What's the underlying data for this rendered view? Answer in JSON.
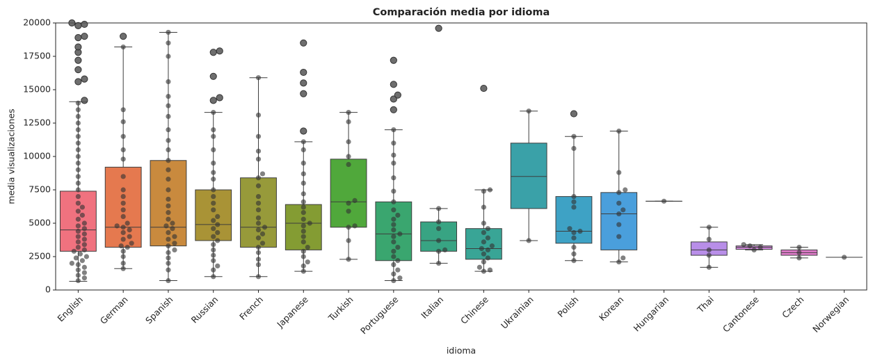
{
  "chart_data": {
    "type": "box",
    "title": "Comparación media por idioma",
    "x_label": "idioma",
    "y_label": "media visualizaciones",
    "ylim": [
      0,
      20000
    ],
    "yticks": [
      0,
      2500,
      5000,
      7500,
      10000,
      12500,
      15000,
      17500,
      20000
    ],
    "categories": [
      "English",
      "German",
      "Spanish",
      "Russian",
      "French",
      "Japanese",
      "Turkish",
      "Portuguese",
      "Italian",
      "Chinese",
      "Ukrainian",
      "Polish",
      "Korean",
      "Hungarian",
      "Thai",
      "Cantonese",
      "Czech",
      "Norwegian"
    ],
    "boxes": [
      {
        "color": "#f0727f",
        "low": 650,
        "q1": 2900,
        "median": 4500,
        "q3": 7400,
        "high": 14100,
        "outliers": [
          14200,
          15600,
          15800,
          16500,
          17200,
          17800,
          18200,
          18900,
          19000,
          19800,
          19900,
          20000
        ],
        "points": [
          700,
          900,
          1100,
          1300,
          1500,
          1700,
          1900,
          2000,
          2200,
          2400,
          2500,
          2700,
          2900,
          3000,
          3200,
          3400,
          3600,
          3800,
          4000,
          4200,
          4400,
          4600,
          4800,
          5000,
          5300,
          5600,
          5900,
          6200,
          6500,
          7000,
          7500,
          8000,
          8500,
          9000,
          9500,
          10000,
          10500,
          11000,
          11500,
          12000,
          12500,
          13000,
          13500,
          14000
        ]
      },
      {
        "color": "#e5794f",
        "low": 1600,
        "q1": 3200,
        "median": 4700,
        "q3": 9200,
        "high": 18200,
        "outliers": [
          19000
        ],
        "points": [
          1600,
          2000,
          2500,
          2900,
          3200,
          3300,
          3500,
          3800,
          4000,
          4300,
          4500,
          4700,
          4800,
          5000,
          5500,
          6000,
          6500,
          7000,
          7500,
          8500,
          9800,
          10500,
          11500,
          12600,
          13500,
          18200
        ]
      },
      {
        "color": "#c98a3e",
        "low": 700,
        "q1": 3300,
        "median": 4700,
        "q3": 9700,
        "high": 19300,
        "outliers": [],
        "points": [
          700,
          1500,
          2000,
          2400,
          2800,
          3000,
          3300,
          3500,
          3800,
          4000,
          4300,
          4600,
          4800,
          5000,
          5300,
          5800,
          6300,
          6800,
          7500,
          8300,
          9000,
          9700,
          10500,
          11200,
          12000,
          13000,
          13800,
          14500,
          15600,
          17500,
          18500,
          19300
        ]
      },
      {
        "color": "#a99336",
        "low": 1000,
        "q1": 3700,
        "median": 4900,
        "q3": 7500,
        "high": 13300,
        "outliers": [
          14200,
          14400,
          16000,
          17800,
          17900
        ],
        "points": [
          1000,
          1500,
          1800,
          2200,
          2600,
          3000,
          3400,
          3700,
          4000,
          4300,
          4600,
          4900,
          5200,
          5500,
          6000,
          6500,
          7000,
          7500,
          8300,
          8800,
          9500,
          10500,
          11500,
          12000,
          13300
        ]
      },
      {
        "color": "#979a3a",
        "low": 1000,
        "q1": 3200,
        "median": 4700,
        "q3": 8400,
        "high": 15900,
        "outliers": [],
        "points": [
          1000,
          1900,
          2300,
          2800,
          3200,
          3500,
          3900,
          4200,
          4500,
          4700,
          5000,
          5400,
          6000,
          6500,
          7000,
          7800,
          8400,
          8700,
          9800,
          10400,
          11500,
          13100,
          15900
        ]
      },
      {
        "color": "#849c33",
        "low": 1400,
        "q1": 3000,
        "median": 5000,
        "q3": 6400,
        "high": 11100,
        "outliers": [
          11900,
          14700,
          15500,
          16300,
          18500
        ],
        "points": [
          1400,
          1800,
          2100,
          2500,
          2900,
          3200,
          3600,
          4000,
          4400,
          4800,
          5000,
          5300,
          5800,
          6200,
          6600,
          7200,
          8000,
          8700,
          9500,
          10500,
          11100
        ]
      },
      {
        "color": "#50a83b",
        "low": 2300,
        "q1": 4700,
        "median": 6600,
        "q3": 9800,
        "high": 13300,
        "outliers": [],
        "points": [
          2300,
          3700,
          4700,
          4800,
          5900,
          6500,
          6700,
          9400,
          10000,
          11100,
          12600,
          13300
        ]
      },
      {
        "color": "#3aa66f",
        "low": 700,
        "q1": 2200,
        "median": 4200,
        "q3": 6600,
        "high": 12000,
        "outliers": [
          13500,
          14300,
          14600,
          15400,
          17200
        ],
        "points": [
          700,
          900,
          1200,
          1500,
          1900,
          2200,
          2500,
          2900,
          3200,
          3600,
          4000,
          4200,
          4500,
          4900,
          5300,
          5600,
          6000,
          6600,
          7400,
          8400,
          9500,
          10100,
          11000,
          12000
        ]
      },
      {
        "color": "#38a483",
        "low": 2000,
        "q1": 2900,
        "median": 3700,
        "q3": 5100,
        "high": 6100,
        "outliers": [
          19600
        ],
        "points": [
          2000,
          2900,
          3000,
          3700,
          4600,
          5100,
          6100
        ]
      },
      {
        "color": "#39a596",
        "low": 1400,
        "q1": 2300,
        "median": 3100,
        "q3": 4600,
        "high": 7500,
        "outliers": [
          15100
        ],
        "points": [
          1400,
          1500,
          1700,
          2100,
          2400,
          2700,
          3000,
          3100,
          3300,
          3600,
          3900,
          4300,
          4600,
          5000,
          6200,
          7400,
          7500
        ]
      },
      {
        "color": "#3aa1a8",
        "low": 3700,
        "q1": 6100,
        "median": 8500,
        "q3": 11000,
        "high": 13400,
        "outliers": [],
        "points": [
          3700,
          13400
        ]
      },
      {
        "color": "#3ea2c5",
        "low": 2200,
        "q1": 3500,
        "median": 4400,
        "q3": 7000,
        "high": 11500,
        "outliers": [
          13200
        ],
        "points": [
          2200,
          2700,
          3200,
          3900,
          4300,
          4400,
          4600,
          6200,
          6600,
          7000,
          10600,
          11500
        ]
      },
      {
        "color": "#4a9fdc",
        "low": 2100,
        "q1": 3000,
        "median": 5700,
        "q3": 7300,
        "high": 11900,
        "outliers": [],
        "points": [
          2100,
          2400,
          4000,
          4900,
          5700,
          6000,
          6500,
          7300,
          7500,
          8800,
          11900
        ]
      },
      {
        "color": "#8a98e8",
        "low": 6650,
        "q1": 6650,
        "median": 6650,
        "q3": 6650,
        "high": 6650,
        "outliers": [],
        "points": [
          6650
        ]
      },
      {
        "color": "#b88ee8",
        "low": 1700,
        "q1": 2600,
        "median": 3000,
        "q3": 3600,
        "high": 4700,
        "outliers": [],
        "points": [
          1700,
          2600,
          3000,
          3800,
          4700
        ]
      },
      {
        "color": "#d58ae0",
        "low": 3000,
        "q1": 3050,
        "median": 3200,
        "q3": 3300,
        "high": 3400,
        "outliers": [],
        "points": [
          3000,
          3200,
          3300,
          3400
        ]
      },
      {
        "color": "#e27ccc",
        "low": 2400,
        "q1": 2600,
        "median": 2800,
        "q3": 3000,
        "high": 3200,
        "outliers": [],
        "points": [
          2400,
          2800,
          3200
        ]
      },
      {
        "color": "#f06fae",
        "low": 2450,
        "q1": 2450,
        "median": 2450,
        "q3": 2450,
        "high": 2450,
        "outliers": [],
        "points": [
          2450
        ]
      }
    ]
  }
}
